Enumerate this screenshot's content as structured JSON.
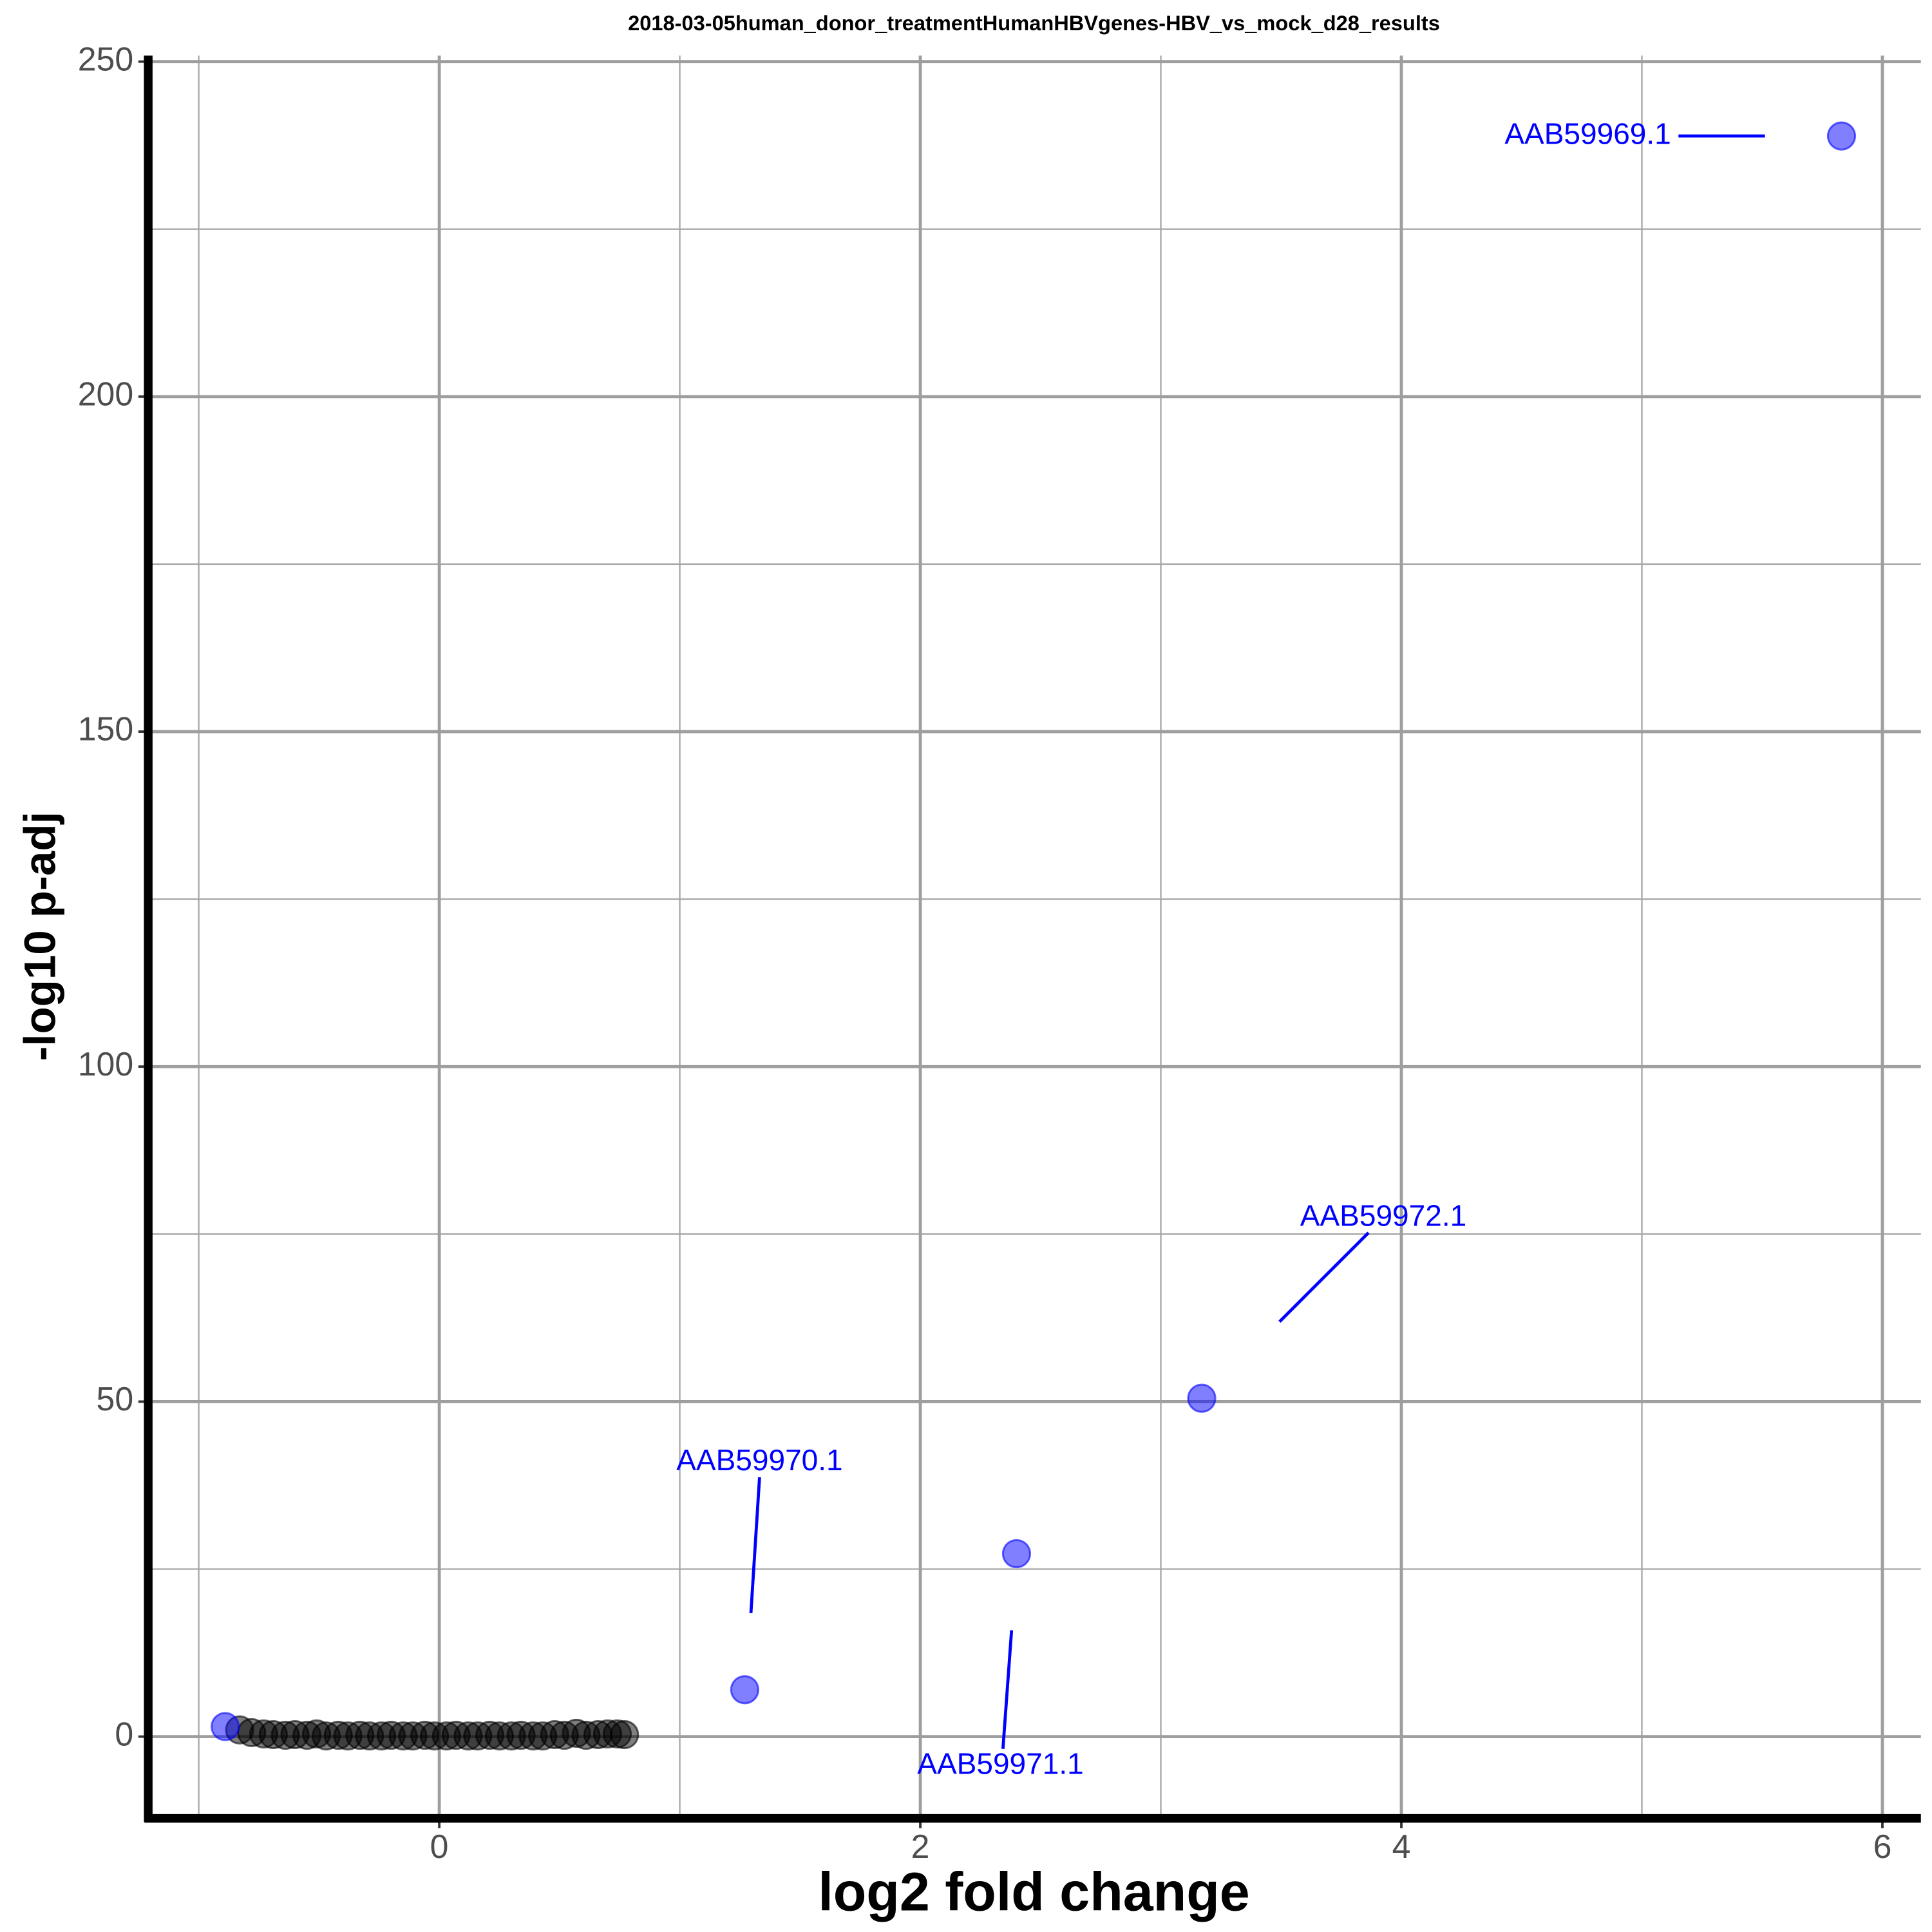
{
  "chart_data": {
    "type": "scatter",
    "title": "2018-03-05human_donor_treatmentHumanHBVgenes-HBV_vs_mock_d28_results",
    "x_label": "log2 fold change",
    "y_label": "-log10 p-adj",
    "xlim": [
      -1.21,
      6.16
    ],
    "xticks": [
      0,
      2,
      4,
      6
    ],
    "ylim": [
      -12.2,
      250.9
    ],
    "yticks": [
      0,
      50,
      100,
      150,
      200,
      250
    ],
    "grid": true,
    "series": [
      {
        "color": "#000000",
        "x": [
          -0.83,
          -0.78,
          -0.73,
          -0.69,
          -0.64,
          -0.6,
          -0.55,
          -0.51,
          -0.47,
          -0.42,
          -0.38,
          -0.33,
          -0.29,
          -0.24,
          -0.2,
          -0.15,
          -0.11,
          -0.06,
          -0.02,
          0.03,
          0.07,
          0.12,
          0.16,
          0.21,
          0.25,
          0.3,
          0.34,
          0.39,
          0.43,
          0.48,
          0.52,
          0.57,
          0.61,
          0.66,
          0.7,
          0.74,
          0.77
        ],
        "values": [
          1.0,
          0.6,
          0.4,
          0.3,
          0.2,
          0.3,
          0.2,
          0.4,
          0.1,
          0.2,
          0.1,
          0.2,
          0.1,
          0.1,
          0.2,
          0.1,
          0.1,
          0.2,
          0.1,
          0.1,
          0.2,
          0.1,
          0.1,
          0.2,
          0.1,
          0.1,
          0.2,
          0.1,
          0.1,
          0.3,
          0.2,
          0.5,
          0.2,
          0.3,
          0.4,
          0.4,
          0.3
        ]
      },
      {
        "color": "#0000ff",
        "x": [
          -0.89,
          1.27,
          2.4,
          3.17,
          5.83
        ],
        "values": [
          1.5,
          7.0,
          27.3,
          50.5,
          238.9
        ],
        "labels": [
          null,
          "AAB59970.1",
          "AAB59971.1",
          "AAB59972.1",
          "AAB59969.1"
        ]
      }
    ]
  }
}
